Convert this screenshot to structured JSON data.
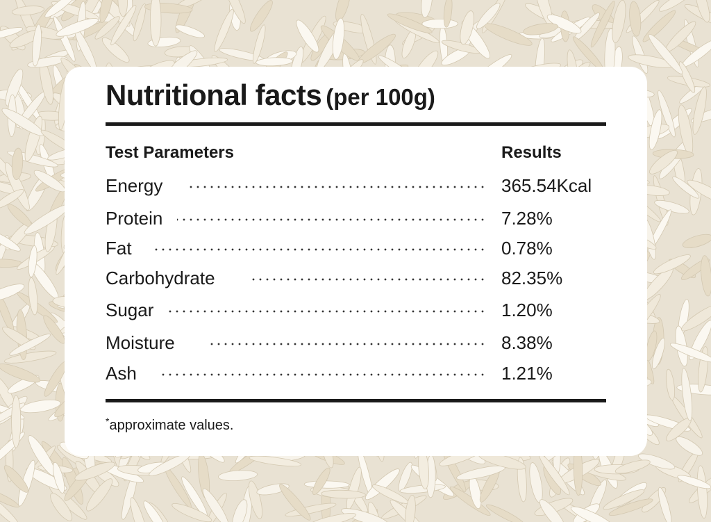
{
  "title": {
    "main": "Nutritional facts",
    "sub": "(per 100g)"
  },
  "table": {
    "header_param": "Test Parameters",
    "header_result": "Results",
    "rows": [
      {
        "param": "Energy",
        "value": "365.54Kcal"
      },
      {
        "param": "Protein",
        "value": "7.28%"
      },
      {
        "param": "Fat",
        "value": "0.78%"
      },
      {
        "param": "Carbohydrate",
        "value": "82.35%"
      },
      {
        "param": "Sugar",
        "value": "1.20%"
      },
      {
        "param": "Moisture",
        "value": "8.38%"
      },
      {
        "param": "Ash",
        "value": "1.21%"
      }
    ]
  },
  "footnote": {
    "mark": "*",
    "text": "approximate values."
  },
  "colors": {
    "text": "#1a1a1a",
    "card": "#ffffff",
    "background": "#e9e2d3"
  }
}
